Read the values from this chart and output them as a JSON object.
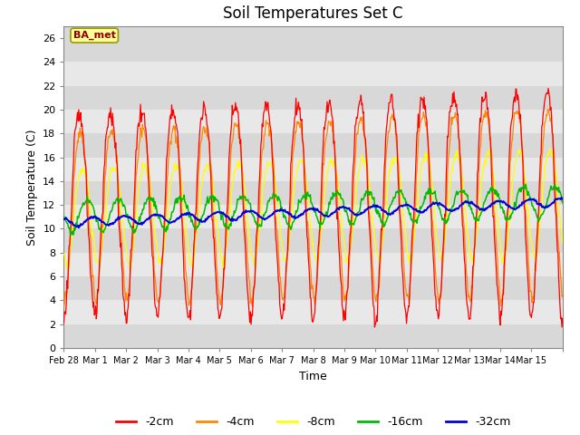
{
  "title": "Soil Temperatures Set C",
  "xlabel": "Time",
  "ylabel": "Soil Temperature (C)",
  "ylim": [
    0,
    27
  ],
  "xlim": [
    0,
    16
  ],
  "yticks": [
    0,
    2,
    4,
    6,
    8,
    10,
    12,
    14,
    16,
    18,
    20,
    22,
    24,
    26
  ],
  "xtick_positions": [
    0,
    1,
    2,
    3,
    4,
    5,
    6,
    7,
    8,
    9,
    10,
    11,
    12,
    13,
    14,
    15,
    16
  ],
  "xtick_labels": [
    "Feb 28",
    "Mar 1",
    "Mar 2",
    "Mar 3",
    "Mar 4",
    "Mar 5",
    "Mar 6",
    "Mar 7",
    "Mar 8",
    "Mar 9",
    "Mar 10",
    "Mar 11",
    "Mar 12",
    "Mar 13",
    "Mar 14",
    "Mar 15",
    ""
  ],
  "annotation_text": "BA_met",
  "colors": {
    "-2cm": "#ff0000",
    "-4cm": "#ff8800",
    "-8cm": "#ffff00",
    "-16cm": "#00bb00",
    "-32cm": "#0000dd"
  },
  "plot_bg": "#d8d8d8",
  "fig_bg": "#ffffff",
  "grid_color": "#ffffff",
  "title_fontsize": 12,
  "axis_fontsize": 9,
  "tick_fontsize": 8,
  "legend_fontsize": 9,
  "band_colors": [
    "#d8d8d8",
    "#e8e8e8"
  ]
}
